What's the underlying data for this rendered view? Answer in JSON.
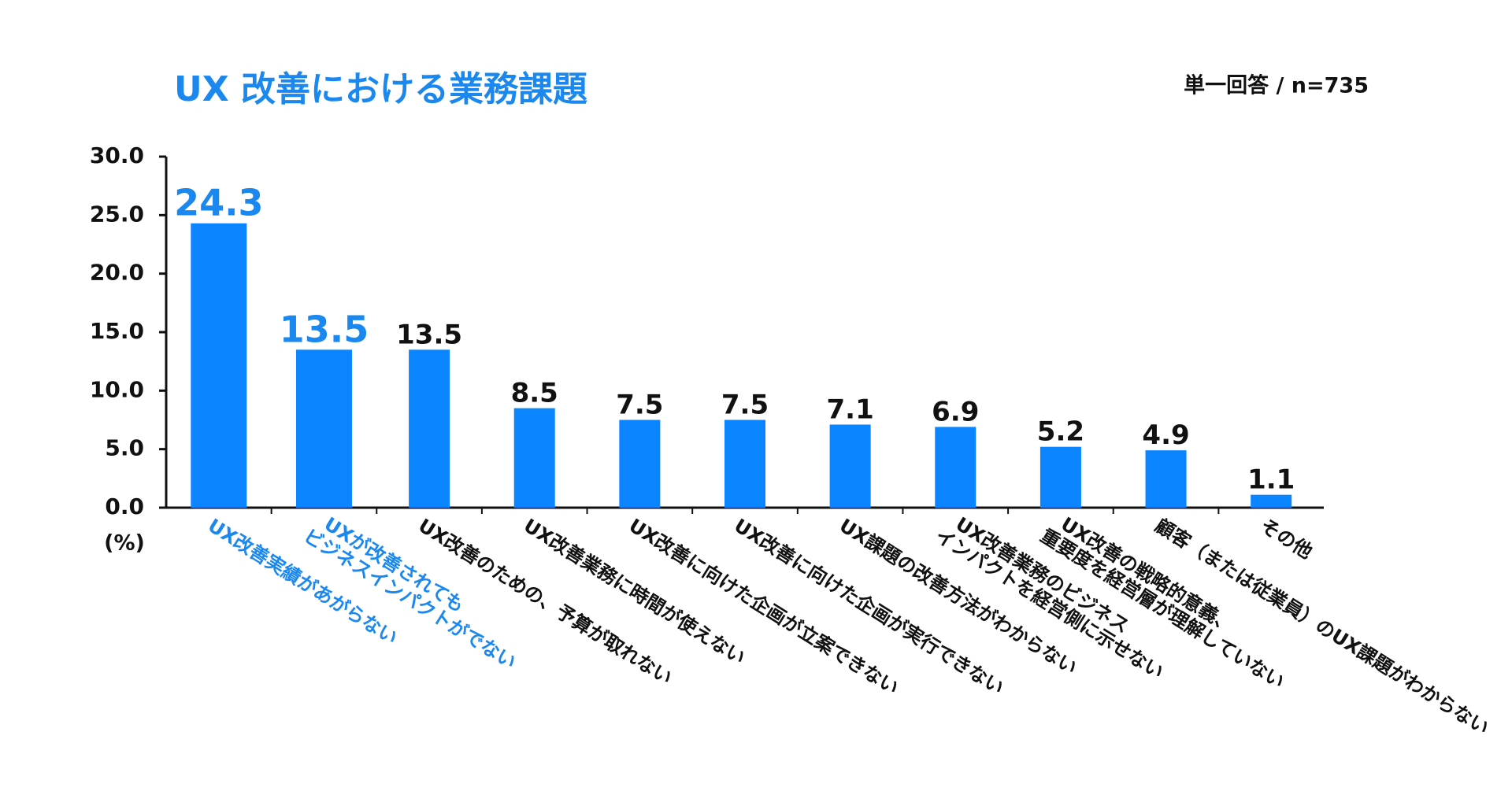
{
  "chart_data": {
    "type": "bar",
    "title": "UX 改善における業務課題",
    "subtitle": "単一回答 / n=735",
    "y_label": "(%)",
    "categories": [
      "UX改善実績があがらない",
      "UXが改善されても\nビジネスインパクトがでない",
      "UX改善のための、予算が取れない",
      "UX改善業務に時間が使えない",
      "UX改善に向けた企画が立案できない",
      "UX改善に向けた企画が実行できない",
      "UX課題の改善方法がわからない",
      "UX改善業務のビジネス\nインパクトを経営側に示せない",
      "UX改善の戦略的意義、\n重要度を経営層が理解していない",
      "顧客（または従業員）のUX課題がわからない",
      "その他"
    ],
    "values": [
      24.3,
      13.5,
      13.5,
      8.5,
      7.5,
      7.5,
      7.1,
      6.9,
      5.2,
      4.9,
      1.1
    ],
    "highlight": [
      true,
      true,
      false,
      false,
      false,
      false,
      false,
      false,
      false,
      false,
      false
    ],
    "color": "#0a84ff",
    "highlight_text_color": "#1a88ee",
    "text_color": "#111111",
    "ylim": [
      0,
      30
    ],
    "yticks": [
      {
        "value": 0,
        "label": "0.0"
      },
      {
        "value": 5,
        "label": "5.0"
      },
      {
        "value": 10,
        "label": "10.0"
      },
      {
        "value": 15,
        "label": "15.0"
      },
      {
        "value": 20,
        "label": "20.0"
      },
      {
        "value": 25,
        "label": "25.0"
      },
      {
        "value": 30,
        "label": "30.0"
      }
    ],
    "grid": false
  }
}
